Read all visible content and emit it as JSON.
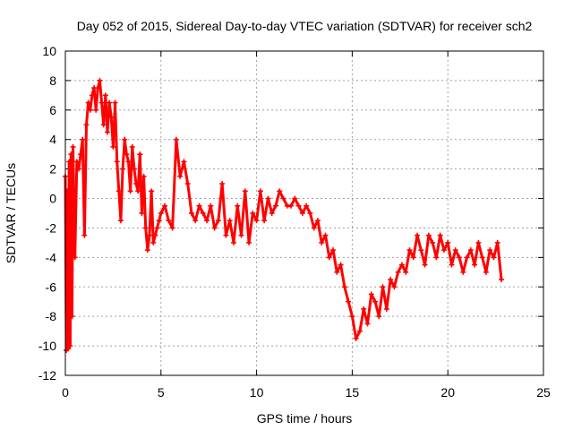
{
  "chart_data": {
    "type": "scatter",
    "title": "Day 052 of 2015, Sidereal Day-to-day VTEC variation (SDTVAR) for receiver sch2",
    "xlabel": "GPS time / hours",
    "ylabel": "SDTVAR / TECUs",
    "xlim": [
      0,
      25
    ],
    "ylim": [
      -12,
      10
    ],
    "xticks": [
      0,
      5,
      10,
      15,
      20,
      25
    ],
    "yticks": [
      -12,
      -10,
      -8,
      -6,
      -4,
      -2,
      0,
      2,
      4,
      6,
      8,
      10
    ],
    "grid": true,
    "marker": "+",
    "color": "#ff0000",
    "series": [
      {
        "name": "SDTVAR",
        "x": [
          0.0,
          0.05,
          0.1,
          0.15,
          0.2,
          0.25,
          0.3,
          0.35,
          0.4,
          0.5,
          0.6,
          0.7,
          0.8,
          0.9,
          1.0,
          1.1,
          1.2,
          1.3,
          1.4,
          1.5,
          1.6,
          1.7,
          1.8,
          1.9,
          2.0,
          2.1,
          2.2,
          2.3,
          2.4,
          2.5,
          2.6,
          2.7,
          2.8,
          2.9,
          3.0,
          3.1,
          3.2,
          3.3,
          3.4,
          3.5,
          3.6,
          3.7,
          3.8,
          3.9,
          4.0,
          4.1,
          4.2,
          4.3,
          4.4,
          4.5,
          4.6,
          4.7,
          4.8,
          4.9,
          5.0,
          5.2,
          5.4,
          5.6,
          5.8,
          6.0,
          6.2,
          6.4,
          6.6,
          6.8,
          7.0,
          7.2,
          7.4,
          7.6,
          7.8,
          8.0,
          8.2,
          8.4,
          8.6,
          8.8,
          9.0,
          9.2,
          9.4,
          9.6,
          9.8,
          10.0,
          10.2,
          10.4,
          10.6,
          10.8,
          11.0,
          11.2,
          11.4,
          11.6,
          11.8,
          12.0,
          12.2,
          12.4,
          12.6,
          12.8,
          13.0,
          13.2,
          13.4,
          13.6,
          13.8,
          14.0,
          14.2,
          14.4,
          14.6,
          14.8,
          15.0,
          15.2,
          15.4,
          15.6,
          15.8,
          16.0,
          16.2,
          16.4,
          16.6,
          16.8,
          17.0,
          17.2,
          17.4,
          17.6,
          17.8,
          18.0,
          18.2,
          18.4,
          18.6,
          18.8,
          19.0,
          19.2,
          19.4,
          19.6,
          19.8,
          20.0,
          20.2,
          20.4,
          20.6,
          20.8,
          21.0,
          21.2,
          21.4,
          21.6,
          21.8,
          22.0,
          22.2,
          22.4,
          22.6,
          22.8
        ],
        "y": [
          1.5,
          -10.3,
          0.5,
          -10.2,
          2.5,
          -10.0,
          3.0,
          -8.0,
          3.5,
          -4.0,
          2.5,
          2.0,
          3.0,
          4.0,
          -2.5,
          5.0,
          6.5,
          6.0,
          7.0,
          7.5,
          6.0,
          7.5,
          8.0,
          6.5,
          5.0,
          7.0,
          4.5,
          6.5,
          5.5,
          3.5,
          6.5,
          2.5,
          0.5,
          -1.5,
          2.0,
          4.0,
          3.0,
          2.5,
          0.5,
          3.5,
          2.0,
          1.0,
          0.5,
          3.0,
          -1.0,
          1.5,
          -2.0,
          -3.5,
          -2.5,
          0.5,
          -3.0,
          -2.5,
          -2.0,
          -1.5,
          -1.0,
          -0.5,
          -1.5,
          -2.0,
          4.0,
          1.5,
          2.5,
          1.0,
          -1.0,
          -1.5,
          -0.5,
          -1.0,
          -1.5,
          -0.5,
          -2.0,
          -1.5,
          1.0,
          -2.5,
          -1.5,
          -3.0,
          -0.5,
          -2.5,
          0.5,
          -3.0,
          -1.0,
          -1.5,
          0.5,
          -1.5,
          0.0,
          -1.0,
          -0.5,
          0.5,
          0.0,
          -0.5,
          -0.5,
          0.0,
          -0.5,
          -1.0,
          -0.5,
          -1.0,
          -2.0,
          -1.5,
          -3.0,
          -2.5,
          -4.0,
          -3.5,
          -5.0,
          -4.5,
          -6.0,
          -7.0,
          -8.0,
          -9.5,
          -9.0,
          -7.5,
          -8.5,
          -6.5,
          -7.0,
          -8.0,
          -6.0,
          -7.5,
          -5.5,
          -6.0,
          -5.0,
          -4.5,
          -5.0,
          -3.5,
          -4.0,
          -2.5,
          -3.5,
          -4.5,
          -2.5,
          -3.0,
          -4.0,
          -2.5,
          -3.5,
          -3.0,
          -4.5,
          -3.5,
          -4.0,
          -5.0,
          -4.0,
          -3.5,
          -4.5,
          -3.0,
          -4.0,
          -5.0,
          -3.5,
          -4.0,
          -3.0,
          -5.5
        ]
      }
    ]
  }
}
